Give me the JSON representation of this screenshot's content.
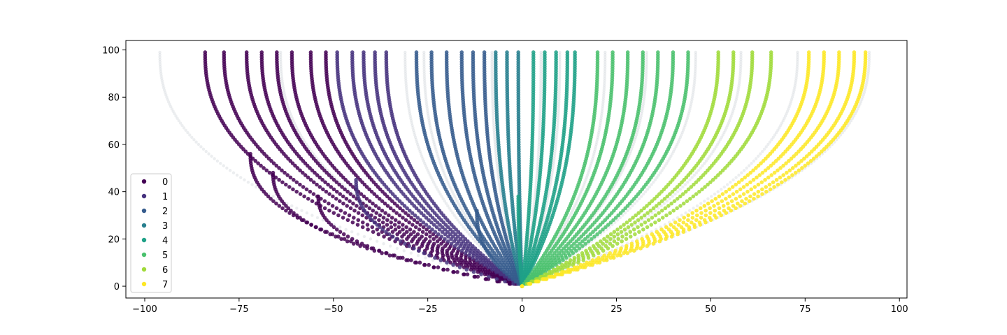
{
  "chart_data": {
    "type": "scatter",
    "title": "",
    "xlabel": "",
    "ylabel": "",
    "xlim": [
      -105,
      102
    ],
    "ylim": [
      -5,
      104
    ],
    "xticks": [
      -100,
      -75,
      -50,
      -25,
      0,
      25,
      50,
      75,
      100
    ],
    "yticks": [
      0,
      20,
      40,
      60,
      80,
      100
    ],
    "xtick_labels": [
      "−100",
      "−75",
      "−50",
      "−25",
      "0",
      "25",
      "50",
      "75",
      "100"
    ],
    "ytick_labels": [
      "0",
      "20",
      "40",
      "60",
      "80",
      "100"
    ],
    "grid": false,
    "legend_position": "lower-left",
    "branch_y_values": "y from 0 to 99 in steps of 1",
    "series": [
      {
        "name": "0",
        "color": "#440154",
        "branches": [
          [
            -54,
            38
          ],
          [
            -66,
            48
          ],
          [
            -72,
            56
          ],
          [
            -84,
            99
          ],
          [
            -79,
            99
          ],
          [
            -73,
            99
          ],
          [
            -69,
            99
          ],
          [
            -65,
            99
          ],
          [
            -61,
            99
          ],
          [
            -56,
            99
          ],
          [
            -52,
            99
          ]
        ]
      },
      {
        "name": "1",
        "color": "#46327e",
        "branches": [
          [
            -44,
            45
          ],
          [
            -49,
            99
          ],
          [
            -45,
            99
          ],
          [
            -42,
            99
          ],
          [
            -39,
            99
          ],
          [
            -36,
            99
          ]
        ]
      },
      {
        "name": "2",
        "color": "#365c8d",
        "branches": [
          [
            -12,
            32
          ],
          [
            -28,
            99
          ],
          [
            -24,
            99
          ],
          [
            -20,
            99
          ],
          [
            -16,
            99
          ],
          [
            -13,
            99
          ],
          [
            -10,
            99
          ]
        ]
      },
      {
        "name": "3",
        "color": "#277f8e",
        "branches": [
          [
            -7,
            99
          ],
          [
            -4,
            99
          ],
          [
            -1,
            99
          ]
        ]
      },
      {
        "name": "4",
        "color": "#1fa187",
        "branches": [
          [
            -1,
            38
          ],
          [
            3,
            99
          ],
          [
            6,
            99
          ],
          [
            9,
            99
          ],
          [
            12,
            99
          ],
          [
            14,
            99
          ]
        ]
      },
      {
        "name": "5",
        "color": "#4ac16d",
        "branches": [
          [
            20,
            99
          ],
          [
            24,
            99
          ],
          [
            28,
            99
          ],
          [
            32,
            99
          ],
          [
            36,
            99
          ],
          [
            40,
            99
          ],
          [
            44,
            99
          ]
        ]
      },
      {
        "name": "6",
        "color": "#a0da39",
        "branches": [
          [
            52,
            99
          ],
          [
            56,
            99
          ],
          [
            61,
            99
          ],
          [
            66,
            99
          ]
        ]
      },
      {
        "name": "7",
        "color": "#fde725",
        "branches": [
          [
            76,
            99
          ],
          [
            80,
            99
          ],
          [
            84,
            99
          ],
          [
            88,
            99
          ],
          [
            91,
            99
          ]
        ]
      }
    ],
    "faded_branches": [
      [
        -96,
        99
      ],
      [
        -64,
        99
      ],
      [
        -31,
        99
      ],
      [
        -26,
        99
      ],
      [
        -8,
        99
      ],
      [
        5,
        99
      ],
      [
        10,
        99
      ],
      [
        22,
        99
      ],
      [
        33,
        99
      ],
      [
        46,
        99
      ],
      [
        58,
        99
      ],
      [
        73,
        99
      ],
      [
        92,
        99
      ]
    ],
    "faded_color": "#b9c3c8"
  }
}
